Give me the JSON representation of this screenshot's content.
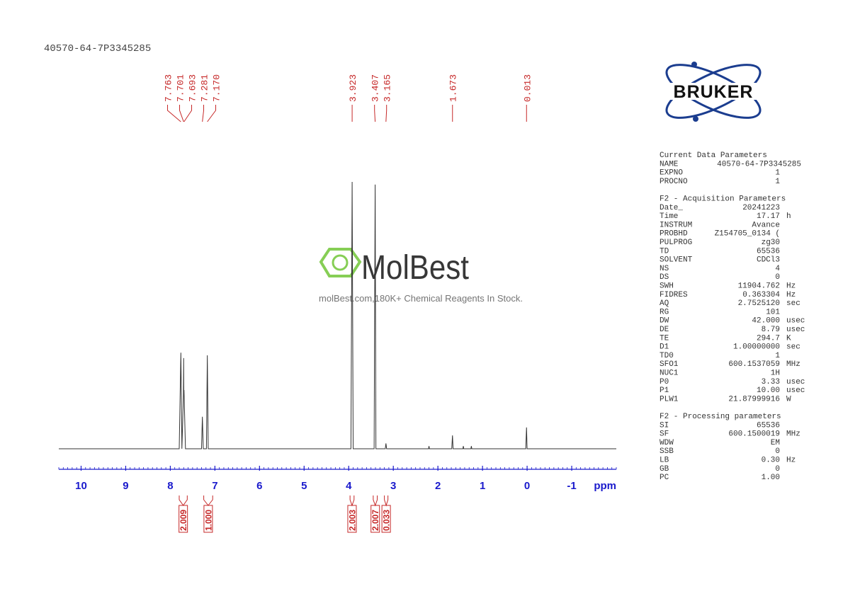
{
  "chart_data": {
    "type": "spectrum",
    "title": "40570-64-7P3345285",
    "x_label": "ppm",
    "xlim": [
      10.5,
      -2.0
    ],
    "xticks": [
      10,
      9,
      8,
      7,
      6,
      5,
      4,
      3,
      2,
      1,
      0,
      -1
    ],
    "minor_tick_step": 0.1,
    "ylim": [
      0,
      100
    ],
    "color": "#333333",
    "axis_color": "#1a1acc",
    "label_color": "#c62828",
    "spectrum": {
      "x": [
        10.5,
        7.8,
        7.763,
        7.74,
        7.705,
        7.701,
        7.697,
        7.693,
        7.66,
        7.3,
        7.281,
        7.26,
        7.19,
        7.17,
        7.15,
        3.95,
        3.923,
        3.9,
        3.43,
        3.407,
        3.39,
        3.18,
        3.165,
        3.15,
        2.21,
        2.2,
        2.19,
        1.69,
        1.673,
        1.66,
        1.44,
        1.43,
        1.42,
        1.26,
        1.25,
        1.24,
        0.03,
        0.013,
        0.0,
        -2.0
      ],
      "values": [
        0,
        0,
        36,
        0,
        20,
        34,
        20,
        22,
        0,
        0,
        12,
        0,
        0,
        35,
        0,
        0,
        100,
        0,
        0,
        99,
        0,
        0,
        2,
        0,
        0,
        1,
        0,
        0,
        5,
        0,
        0,
        1,
        0,
        0,
        1,
        0,
        0,
        8,
        0,
        0
      ]
    },
    "peaks": {
      "values": [
        7.763,
        7.701,
        7.693,
        7.281,
        7.17,
        3.923,
        3.407,
        3.165,
        1.673,
        0.013
      ],
      "value_labels": [
        "7.763",
        "7.701",
        "7.693",
        "7.281",
        "7.170",
        "3.923",
        "3.407",
        "3.165",
        "1.673",
        "0.013"
      ]
    },
    "integrals": {
      "values": [
        2.009,
        1.0,
        2.003,
        2.007,
        0.033
      ],
      "value_labels": [
        "2.009",
        "1.000",
        "2.003",
        "2.007",
        "0.033"
      ],
      "ranges": [
        [
          7.8,
          7.62
        ],
        [
          7.25,
          7.05
        ],
        [
          3.97,
          3.88
        ],
        [
          3.45,
          3.36
        ],
        [
          3.2,
          3.12
        ]
      ]
    }
  },
  "logo": "BRUKER",
  "watermark": {
    "brand": "MolBest",
    "tagline": "molBest.com,180K+ Chemical Reagents In Stock."
  },
  "parameters": [
    {
      "heading": "Current Data Parameters",
      "rows": [
        {
          "name": "NAME",
          "value": "40570-64-7P3345285"
        },
        {
          "name": "EXPNO",
          "value": "1"
        },
        {
          "name": "PROCNO",
          "value": "1"
        }
      ]
    },
    {
      "heading": "F2 - Acquisition Parameters",
      "rows": [
        {
          "name": "Date_",
          "value": "20241223"
        },
        {
          "name": "Time",
          "value": "17.17",
          "unit": "h"
        },
        {
          "name": "INSTRUM",
          "value": "Avance"
        },
        {
          "name": "PROBHD",
          "value": "Z154705_0134 ("
        },
        {
          "name": "PULPROG",
          "value": "zg30"
        },
        {
          "name": "TD",
          "value": "65536"
        },
        {
          "name": "SOLVENT",
          "value": "CDCl3"
        },
        {
          "name": "NS",
          "value": "4"
        },
        {
          "name": "DS",
          "value": "0"
        },
        {
          "name": "SWH",
          "value": "11904.762",
          "unit": "Hz"
        },
        {
          "name": "FIDRES",
          "value": "0.363304",
          "unit": "Hz"
        },
        {
          "name": "AQ",
          "value": "2.7525120",
          "unit": "sec"
        },
        {
          "name": "RG",
          "value": "101"
        },
        {
          "name": "DW",
          "value": "42.000",
          "unit": "usec"
        },
        {
          "name": "DE",
          "value": "8.79",
          "unit": "usec"
        },
        {
          "name": "TE",
          "value": "294.7",
          "unit": "K"
        },
        {
          "name": "D1",
          "value": "1.00000000",
          "unit": "sec"
        },
        {
          "name": "TD0",
          "value": "1"
        },
        {
          "name": "SFO1",
          "value": "600.1537059",
          "unit": "MHz"
        },
        {
          "name": "NUC1",
          "value": "1H"
        },
        {
          "name": "P0",
          "value": "3.33",
          "unit": "usec"
        },
        {
          "name": "P1",
          "value": "10.00",
          "unit": "usec"
        },
        {
          "name": "PLW1",
          "value": "21.87999916",
          "unit": "W"
        }
      ]
    },
    {
      "heading": "F2 - Processing parameters",
      "rows": [
        {
          "name": "SI",
          "value": "65536"
        },
        {
          "name": "SF",
          "value": "600.1500019",
          "unit": "MHz"
        },
        {
          "name": "WDW",
          "value": "EM"
        },
        {
          "name": "SSB",
          "value": "0"
        },
        {
          "name": "LB",
          "value": "0.30",
          "unit": "Hz"
        },
        {
          "name": "GB",
          "value": "0"
        },
        {
          "name": "PC",
          "value": "1.00"
        }
      ]
    }
  ]
}
